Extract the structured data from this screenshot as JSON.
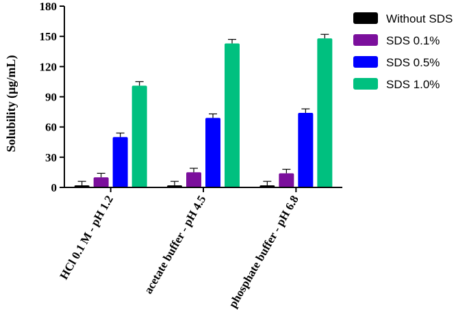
{
  "chart_data": {
    "type": "bar",
    "title": "",
    "xlabel": "",
    "ylabel": "Solubility (µg/mL)",
    "ylim": [
      0,
      180
    ],
    "yticks": [
      0,
      30,
      60,
      90,
      120,
      150,
      180
    ],
    "grid": false,
    "legend_position": "top-right",
    "categories": [
      "HCl 0.1 M - pH 1.2",
      "acetate buffer - pH 4.5",
      "phosphate buffer  - pH 6.8"
    ],
    "series": [
      {
        "name": "Without SDS",
        "color": "#000000",
        "values": [
          2,
          2,
          2
        ],
        "errors": [
          4,
          4,
          4
        ]
      },
      {
        "name": "SDS 0.1%",
        "color": "#7b0f9c",
        "values": [
          10,
          15,
          14
        ],
        "errors": [
          4,
          4,
          4
        ]
      },
      {
        "name": "SDS 0.5%",
        "color": "#0000ff",
        "values": [
          50,
          69,
          74
        ],
        "errors": [
          4,
          4,
          4
        ]
      },
      {
        "name": "SDS 1.0%",
        "color": "#00c07f",
        "values": [
          101,
          143,
          148
        ],
        "errors": [
          4,
          4,
          4
        ]
      }
    ]
  }
}
